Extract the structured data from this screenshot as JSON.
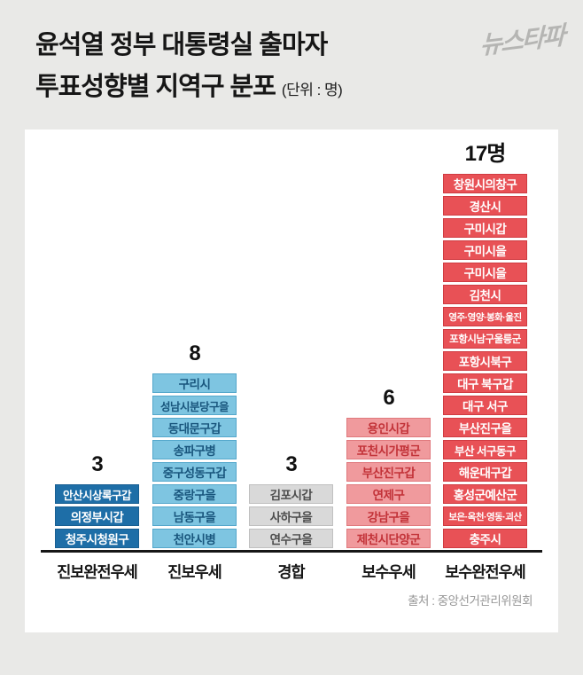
{
  "page": {
    "title_line1": "윤석열 정부 대통령실 출마자",
    "title_line2": "투표성향별 지역구 분포",
    "unit_note": "(단위 : 명)",
    "logo": "뉴스타파",
    "source": "출처 : 중앙선거관리위원회"
  },
  "colors": {
    "page_background": "#e9e9e7",
    "panel_background": "#ffffff",
    "axis": "#161616",
    "deep_blue": "#1e6ea7",
    "light_blue": "#7ec5e1",
    "gray": "#d9d9d9",
    "pink": "#f09a9d",
    "red": "#e85156"
  },
  "chart_data": {
    "type": "bar",
    "title": "윤석열 정부 대통령실 출마자 투표성향별 지역구 분포",
    "unit": "명",
    "xlabel": "",
    "ylabel": "",
    "ylim": [
      0,
      17
    ],
    "grid": false,
    "legend": "none",
    "categories": [
      "진보완전우세",
      "진보우세",
      "경합",
      "보수우세",
      "보수완전우세"
    ],
    "values": [
      3,
      8,
      3,
      6,
      17
    ],
    "groups": [
      {
        "category": "진보완전우세",
        "count_label": "3",
        "style": "deep-blue",
        "districts": [
          "안산시상록구갑",
          "의정부시갑",
          "청주시청원구"
        ]
      },
      {
        "category": "진보우세",
        "count_label": "8",
        "style": "light-blue",
        "districts": [
          "구리시",
          "성남시분당구을",
          "동대문구갑",
          "송파구병",
          "중구성동구갑",
          "중랑구을",
          "남동구을",
          "천안시병"
        ]
      },
      {
        "category": "경합",
        "count_label": "3",
        "style": "gray",
        "districts": [
          "김포시갑",
          "사하구을",
          "연수구을"
        ]
      },
      {
        "category": "보수우세",
        "count_label": "6",
        "style": "pink",
        "districts": [
          "용인시갑",
          "포천시가평군",
          "부산진구갑",
          "연제구",
          "강남구을",
          "제천시단양군"
        ]
      },
      {
        "category": "보수완전우세",
        "count_label": "17명",
        "style": "red",
        "districts": [
          "창원시의창구",
          "경산시",
          "구미시갑",
          "구미시을",
          "구미시을",
          "김천시",
          "영주·영양·봉화·울진",
          "포항시남구울릉군",
          "포항시북구",
          "대구 북구갑",
          "대구 서구",
          "부산진구을",
          "부산 서구동구",
          "해운대구갑",
          "홍성군예산군",
          "보은·옥천·영동·괴산",
          "충주시"
        ]
      }
    ]
  }
}
